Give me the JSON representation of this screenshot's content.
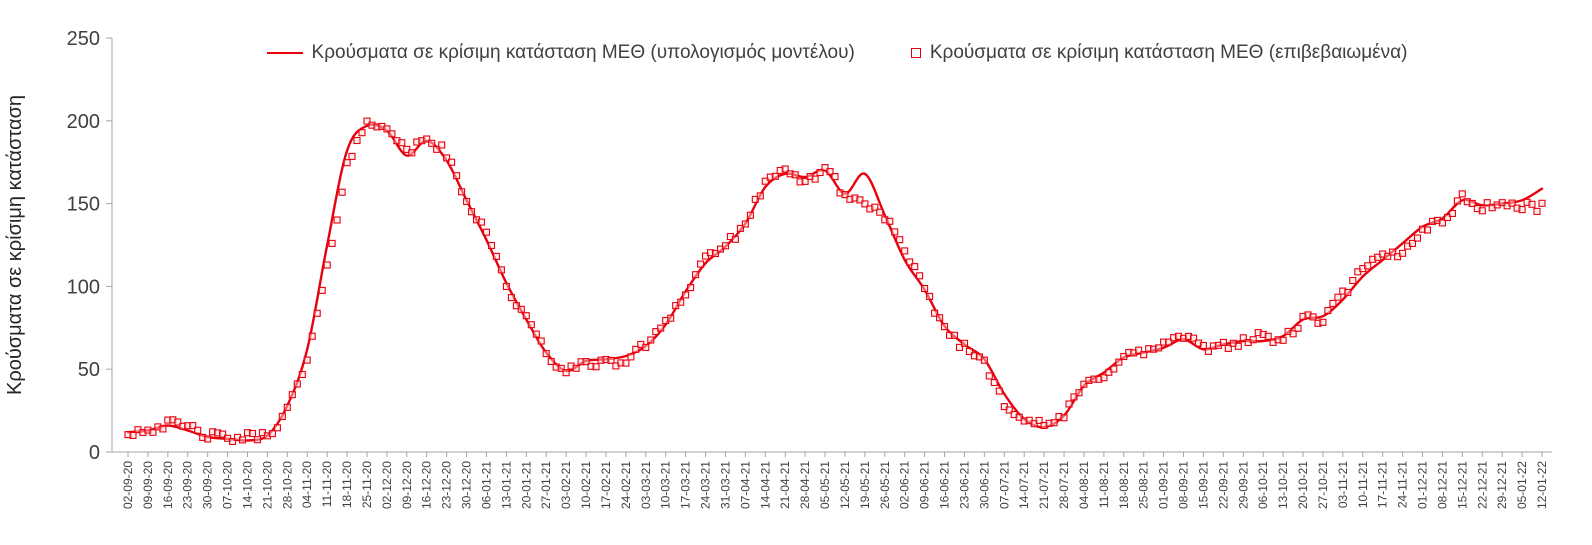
{
  "chart_data": {
    "type": "line",
    "title": "",
    "xlabel": "",
    "ylabel": "Κρούσματα σε κρίσιμη κατάσταση",
    "ylim": [
      0,
      250
    ],
    "yticks": [
      0,
      50,
      100,
      150,
      200,
      250
    ],
    "grid": false,
    "legend_position": "top-center",
    "legend": [
      {
        "label": "Κρούσματα σε κρίσιμη κατάσταση ΜΕΘ (υπολογισμός μοντέλου)",
        "type": "line",
        "color": "#e8000d"
      },
      {
        "label": "Κρούσματα σε κρίσιμη κατάσταση ΜΕΘ (επιβεβαιωμένα)",
        "type": "open-square-marker",
        "color": "#e8000d"
      }
    ],
    "categories": [
      "02-09-20",
      "09-09-20",
      "16-09-20",
      "23-09-20",
      "30-09-20",
      "07-10-20",
      "14-10-20",
      "21-10-20",
      "28-10-20",
      "04-11-20",
      "11-11-20",
      "18-11-20",
      "25-11-20",
      "02-12-20",
      "09-12-20",
      "16-12-20",
      "23-12-20",
      "30-12-20",
      "06-01-21",
      "13-01-21",
      "20-01-21",
      "27-01-21",
      "03-02-21",
      "10-02-21",
      "17-02-21",
      "24-02-21",
      "03-03-21",
      "10-03-21",
      "17-03-21",
      "24-03-21",
      "31-03-21",
      "07-04-21",
      "14-04-21",
      "21-04-21",
      "28-04-21",
      "05-05-21",
      "12-05-21",
      "19-05-21",
      "26-05-21",
      "02-06-21",
      "09-06-21",
      "16-06-21",
      "23-06-21",
      "30-06-21",
      "07-07-21",
      "14-07-21",
      "21-07-21",
      "28-07-21",
      "04-08-21",
      "11-08-21",
      "18-08-21",
      "25-08-21",
      "01-09-21",
      "08-09-21",
      "15-09-21",
      "22-09-21",
      "29-09-21",
      "06-10-21",
      "13-10-21",
      "20-10-21",
      "27-10-21",
      "03-11-21",
      "10-11-21",
      "17-11-21",
      "24-11-21",
      "01-12-21",
      "08-12-21",
      "15-12-21",
      "22-12-21",
      "29-12-21",
      "05-01-22",
      "12-01-22"
    ],
    "series": [
      {
        "name": "Κρούσματα σε κρίσιμη κατάσταση ΜΕΘ (υπολογισμός μοντέλου)",
        "style": "line",
        "color": "#e8000d",
        "values": [
          12,
          13,
          16,
          13,
          9,
          8,
          7,
          10,
          28,
          62,
          125,
          182,
          197,
          194,
          179,
          188,
          176,
          152,
          128,
          102,
          80,
          60,
          49,
          55,
          56,
          58,
          64,
          77,
          97,
          114,
          124,
          138,
          160,
          168,
          166,
          170,
          156,
          168,
          143,
          116,
          98,
          76,
          65,
          56,
          35,
          20,
          15,
          22,
          40,
          48,
          57,
          60,
          63,
          68,
          62,
          65,
          67,
          67,
          70,
          80,
          82,
          92,
          106,
          116,
          126,
          136,
          141,
          152,
          149,
          150,
          152,
          159
        ]
      },
      {
        "name": "Κρούσματα σε κρίσιμη κατάσταση ΜΕΘ (επιβεβαιωμένα)",
        "style": "open-square-markers",
        "color": "#e8000d",
        "values": [
          12,
          14,
          17,
          15,
          10,
          8,
          9,
          10,
          25,
          55,
          110,
          175,
          198,
          198,
          180,
          190,
          180,
          150,
          135,
          100,
          80,
          60,
          47,
          55,
          53,
          55,
          65,
          80,
          95,
          118,
          125,
          135,
          165,
          168,
          163,
          172,
          155,
          150,
          143,
          120,
          98,
          75,
          63,
          55,
          30,
          20,
          15,
          22,
          40,
          47,
          58,
          60,
          65,
          70,
          62,
          65,
          67,
          70,
          67,
          80,
          80,
          95,
          110,
          118,
          120,
          135,
          140,
          153,
          148,
          150,
          148,
          148
        ]
      }
    ],
    "axis_color": "#a6a6a6",
    "tick_label_color": "#404040"
  }
}
